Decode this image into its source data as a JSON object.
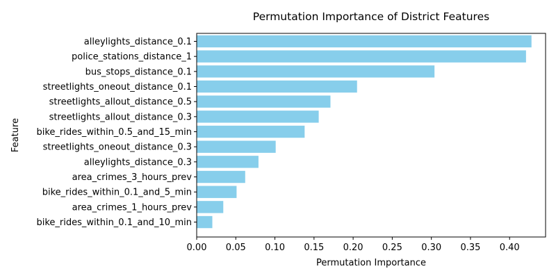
{
  "chart_data": {
    "type": "bar",
    "orientation": "horizontal",
    "title": "Permutation Importance of District Features",
    "xlabel": "Permutation Importance",
    "ylabel": "Feature",
    "xlim": [
      0,
      0.446
    ],
    "x_ticks": [
      "0.00",
      "0.05",
      "0.10",
      "0.15",
      "0.20",
      "0.25",
      "0.30",
      "0.35",
      "0.40"
    ],
    "categories": [
      "alleylights_distance_0.1",
      "police_stations_distance_1",
      "bus_stops_distance_0.1",
      "streetlights_oneout_distance_0.1",
      "streetlights_allout_distance_0.5",
      "streetlights_allout_distance_0.3",
      "bike_rides_within_0.5_and_15_min",
      "streetlights_oneout_distance_0.3",
      "alleylights_distance_0.3",
      "area_crimes_3_hours_prev",
      "bike_rides_within_0.1_and_5_min",
      "area_crimes_1_hours_prev",
      "bike_rides_within_0.1_and_10_min"
    ],
    "values": [
      0.428,
      0.421,
      0.304,
      0.205,
      0.171,
      0.156,
      0.138,
      0.101,
      0.079,
      0.062,
      0.051,
      0.034,
      0.02
    ],
    "bar_color": "#87ceeb",
    "grid": false
  }
}
